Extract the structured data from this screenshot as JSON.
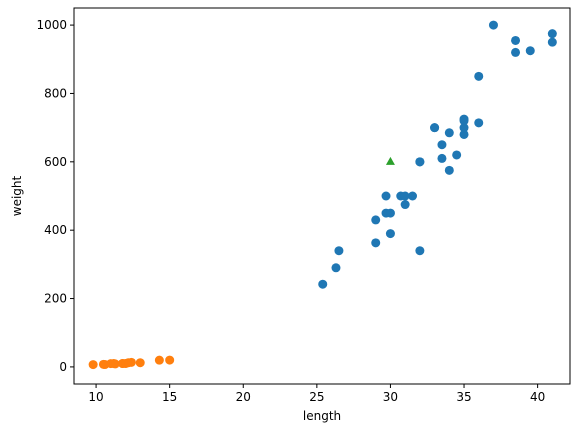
{
  "chart_data": {
    "type": "scatter",
    "xlabel": "length",
    "ylabel": "weight",
    "xlim": [
      8.5,
      42.2
    ],
    "ylim": [
      -50,
      1050
    ],
    "xticks": [
      10,
      15,
      20,
      25,
      30,
      35,
      40
    ],
    "yticks": [
      0,
      200,
      400,
      600,
      800,
      1000
    ],
    "grid": false,
    "series": [
      {
        "marker": "circle",
        "color": "#1f77b4",
        "points": [
          [
            25.4,
            242
          ],
          [
            26.3,
            290
          ],
          [
            26.5,
            340
          ],
          [
            29.0,
            363
          ],
          [
            29.0,
            430
          ],
          [
            29.7,
            450
          ],
          [
            29.7,
            500
          ],
          [
            30.0,
            390
          ],
          [
            30.0,
            450
          ],
          [
            30.7,
            500
          ],
          [
            31.0,
            475
          ],
          [
            31.0,
            500
          ],
          [
            31.5,
            500
          ],
          [
            32.0,
            340
          ],
          [
            32.0,
            600
          ],
          [
            32.0,
            600
          ],
          [
            33.0,
            700
          ],
          [
            33.0,
            700
          ],
          [
            33.5,
            610
          ],
          [
            33.5,
            650
          ],
          [
            34.0,
            575
          ],
          [
            34.0,
            685
          ],
          [
            34.5,
            620
          ],
          [
            35.0,
            680
          ],
          [
            35.0,
            700
          ],
          [
            35.0,
            725
          ],
          [
            35.0,
            720
          ],
          [
            36.0,
            714
          ],
          [
            36.0,
            850
          ],
          [
            37.0,
            1000
          ],
          [
            38.5,
            920
          ],
          [
            38.5,
            955
          ],
          [
            39.5,
            925
          ],
          [
            41.0,
            975
          ],
          [
            41.0,
            950
          ]
        ]
      },
      {
        "marker": "circle",
        "color": "#ff7f0e",
        "points": [
          [
            9.8,
            6.7
          ],
          [
            10.5,
            7.5
          ],
          [
            10.6,
            7.0
          ],
          [
            11.0,
            9.7
          ],
          [
            11.2,
            9.8
          ],
          [
            11.3,
            8.7
          ],
          [
            11.8,
            10.0
          ],
          [
            11.8,
            9.9
          ],
          [
            12.0,
            9.8
          ],
          [
            12.2,
            12.2
          ],
          [
            12.4,
            13.4
          ],
          [
            13.0,
            12.2
          ],
          [
            14.3,
            19.7
          ],
          [
            15.0,
            19.9
          ]
        ]
      },
      {
        "marker": "triangle",
        "color": "#2ca02c",
        "points": [
          [
            30.0,
            600
          ]
        ]
      }
    ]
  }
}
